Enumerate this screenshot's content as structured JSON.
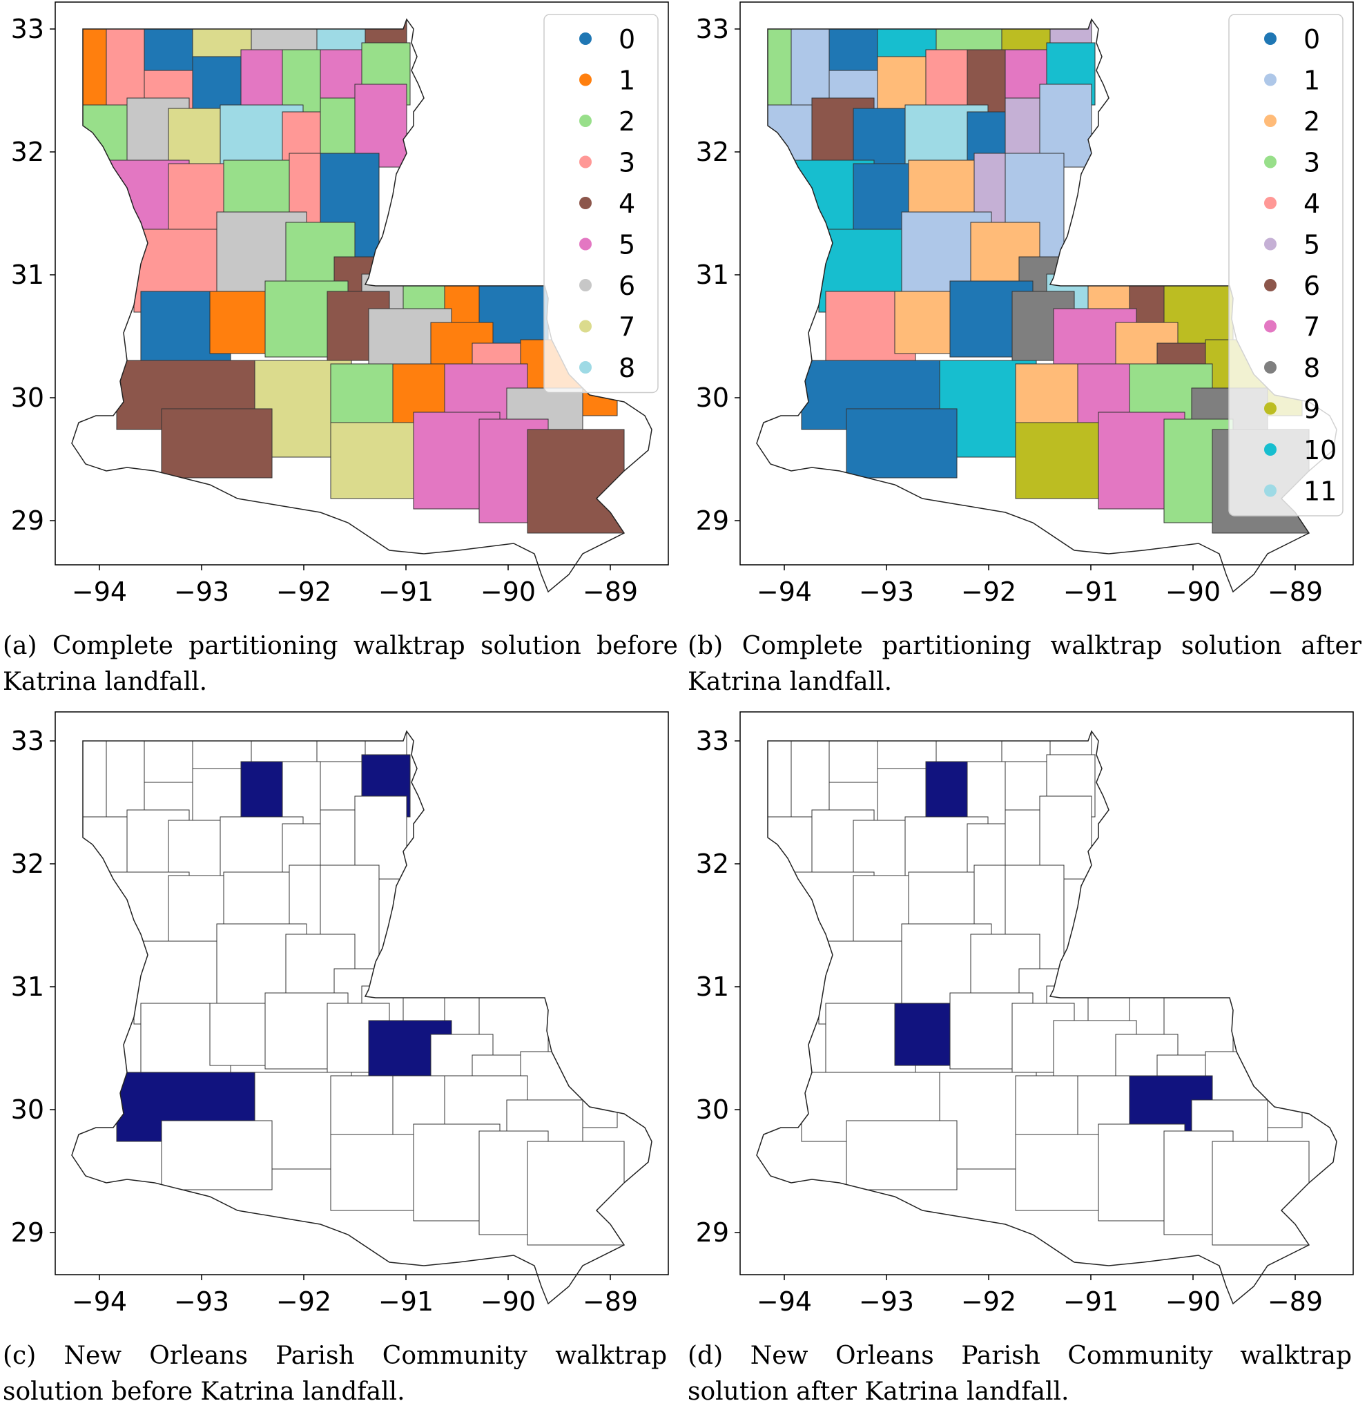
{
  "figure": {
    "panels": [
      {
        "id": "a",
        "type": "map",
        "caption": "(a) Complete partitioning walktrap solution before Katrina landfall.",
        "x_ticks": [
          "−94",
          "−93",
          "−92",
          "−91",
          "−90",
          "−89"
        ],
        "y_ticks": [
          "33",
          "32",
          "31",
          "30",
          "29"
        ],
        "legend": {
          "position": "top-right",
          "entries": [
            {
              "label": "0",
              "color": "#1f77b4"
            },
            {
              "label": "1",
              "color": "#ff7f0e"
            },
            {
              "label": "2",
              "color": "#98df8a"
            },
            {
              "label": "3",
              "color": "#ff9896"
            },
            {
              "label": "4",
              "color": "#8c564b"
            },
            {
              "label": "5",
              "color": "#e377c2"
            },
            {
              "label": "6",
              "color": "#c7c7c7"
            },
            {
              "label": "7",
              "color": "#dbdb8d"
            },
            {
              "label": "8",
              "color": "#9edae5"
            }
          ]
        }
      },
      {
        "id": "b",
        "type": "map",
        "caption": "(b) Complete partitioning walktrap solution after Katrina landfall.",
        "x_ticks": [
          "−94",
          "−93",
          "−92",
          "−91",
          "−90",
          "−89"
        ],
        "y_ticks": [
          "33",
          "32",
          "31",
          "30",
          "29"
        ],
        "legend": {
          "position": "top-right",
          "entries": [
            {
              "label": "0",
              "color": "#1f77b4"
            },
            {
              "label": "1",
              "color": "#aec7e8"
            },
            {
              "label": "2",
              "color": "#ffbb78"
            },
            {
              "label": "3",
              "color": "#98df8a"
            },
            {
              "label": "4",
              "color": "#ff9896"
            },
            {
              "label": "5",
              "color": "#c5b0d5"
            },
            {
              "label": "6",
              "color": "#8c564b"
            },
            {
              "label": "7",
              "color": "#e377c2"
            },
            {
              "label": "8",
              "color": "#7f7f7f"
            },
            {
              "label": "9",
              "color": "#bcbd22"
            },
            {
              "label": "10",
              "color": "#17becf"
            },
            {
              "label": "11",
              "color": "#9edae5"
            }
          ]
        }
      },
      {
        "id": "c",
        "type": "map",
        "caption": "(c) New Orleans Parish Community walktrap solution before Katrina landfall.",
        "x_ticks": [
          "−94",
          "−93",
          "−92",
          "−91",
          "−90",
          "−89"
        ],
        "y_ticks": [
          "33",
          "32",
          "31",
          "30",
          "29"
        ],
        "highlight_color": "#11137f"
      },
      {
        "id": "d",
        "type": "map",
        "caption": "(d) New Orleans Parish Community walktrap solution after Katrina landfall.",
        "x_ticks": [
          "−94",
          "−93",
          "−92",
          "−91",
          "−90",
          "−89"
        ],
        "y_ticks": [
          "33",
          "32",
          "31",
          "30",
          "29"
        ],
        "highlight_color": "#11137f"
      }
    ]
  }
}
